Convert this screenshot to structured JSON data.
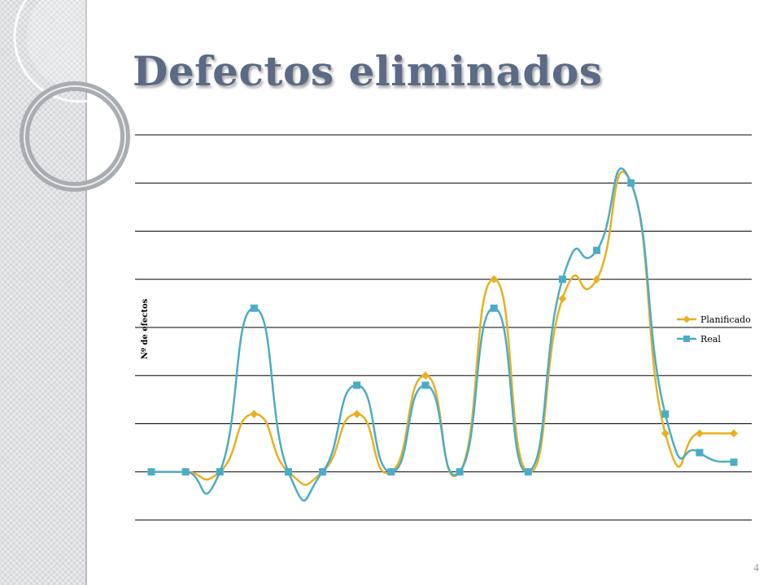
{
  "slide": {
    "title": "Defectos eliminados",
    "page_number": "4"
  },
  "colors": {
    "title": "#5b6a85",
    "grid": "#000000",
    "side_band": "#d4d6d9"
  },
  "chart_data": {
    "type": "line",
    "title": "",
    "xlabel": "",
    "ylabel": "Nº de efectos",
    "ylim": [
      -1,
      7
    ],
    "grid": true,
    "legend": "right",
    "x": [
      1,
      2,
      3,
      4,
      5,
      6,
      7,
      8,
      9,
      10,
      11,
      12,
      13,
      14,
      15,
      16,
      17,
      18
    ],
    "series": [
      {
        "name": "Planificado",
        "color": "#e8b020",
        "marker": "diamond",
        "values": [
          0,
          0,
          0,
          1.2,
          0,
          0,
          1.2,
          0,
          2,
          0,
          4,
          0,
          3.6,
          4,
          6,
          0.8,
          0.8,
          0.8
        ]
      },
      {
        "name": "Real",
        "color": "#4bacc6",
        "marker": "square",
        "values": [
          0,
          0,
          0,
          3.4,
          0,
          0,
          1.8,
          0,
          1.8,
          0,
          3.4,
          0,
          4,
          4.6,
          6,
          1.2,
          0.4,
          0.2
        ]
      }
    ]
  }
}
